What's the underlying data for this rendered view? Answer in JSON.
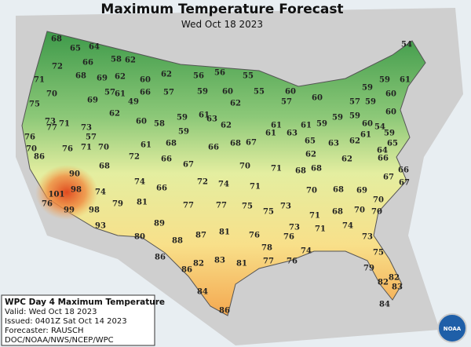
{
  "header": {
    "title": "Maximum Temperature Forecast",
    "subtitle": "Wed Oct 18 2023"
  },
  "info": {
    "lines": [
      "WPC Day 4 Maximum Temperature",
      "Valid: Wed Oct 18 2023",
      "Issued: 0401Z Sat Oct 14 2023",
      "Forecaster: RAUSCH",
      "DOC/NOAA/NWS/NCEP/WPC"
    ]
  },
  "logo": "NOAA",
  "temperatures": [
    68,
    65,
    64,
    58,
    62,
    54,
    72,
    66,
    68,
    69,
    62,
    60,
    62,
    56,
    56,
    55,
    59,
    61,
    71,
    70,
    69,
    57,
    61,
    49,
    66,
    57,
    59,
    60,
    55,
    60,
    57,
    59,
    60,
    75,
    62,
    60,
    58,
    59,
    61,
    62,
    60,
    57,
    59,
    60,
    73,
    71,
    63,
    62,
    61,
    61,
    59,
    59,
    59,
    60,
    76,
    77,
    73,
    57,
    59,
    61,
    63,
    61,
    54,
    59,
    70,
    86,
    76,
    71,
    70,
    61,
    68,
    66,
    68,
    67,
    65,
    63,
    62,
    65,
    64,
    72,
    66,
    62,
    62,
    66,
    68,
    67,
    70,
    71,
    68,
    68,
    66,
    90,
    74,
    72,
    74,
    71,
    67,
    67,
    98,
    66,
    70,
    68,
    69,
    101,
    74,
    76,
    79,
    81,
    77,
    77,
    75,
    75,
    73,
    70,
    99,
    98,
    71,
    68,
    70,
    70,
    93,
    89,
    81,
    73,
    71,
    74,
    80,
    88,
    87,
    76,
    76,
    73,
    78,
    74,
    75,
    86,
    83,
    81,
    77,
    76,
    86,
    82,
    79,
    82,
    84,
    82,
    83,
    84,
    86
  ]
}
